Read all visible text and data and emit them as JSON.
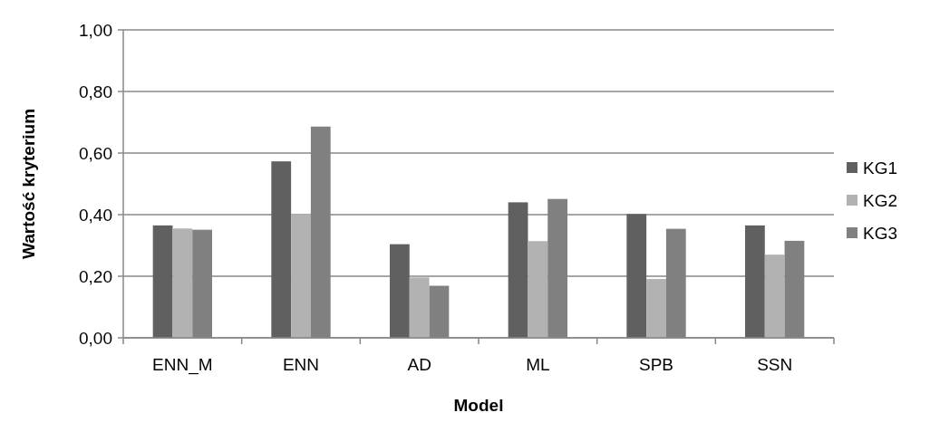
{
  "chart_data": {
    "type": "bar",
    "xlabel": "Model",
    "ylabel": "Wartość kryterium",
    "categories": [
      "ENN_M",
      "ENN",
      "AD",
      "ML",
      "SPB",
      "SSN"
    ],
    "series": [
      {
        "name": "KG1",
        "color": "#606060",
        "values": [
          0.365,
          0.573,
          0.304,
          0.44,
          0.402,
          0.365
        ]
      },
      {
        "name": "KG2",
        "color": "#b2b2b2",
        "values": [
          0.355,
          0.401,
          0.196,
          0.314,
          0.191,
          0.27
        ]
      },
      {
        "name": "KG3",
        "color": "#808080",
        "values": [
          0.351,
          0.686,
          0.169,
          0.451,
          0.354,
          0.315
        ]
      }
    ],
    "ylim": [
      0,
      1
    ],
    "yticks": [
      {
        "value": 0,
        "label": "0,00"
      },
      {
        "value": 0.2,
        "label": "0,20"
      },
      {
        "value": 0.4,
        "label": "0,40"
      },
      {
        "value": 0.6,
        "label": "0,60"
      },
      {
        "value": 0.8,
        "label": "0,80"
      },
      {
        "value": 1,
        "label": "1,00"
      }
    ],
    "grid": "y",
    "legend": "right"
  }
}
